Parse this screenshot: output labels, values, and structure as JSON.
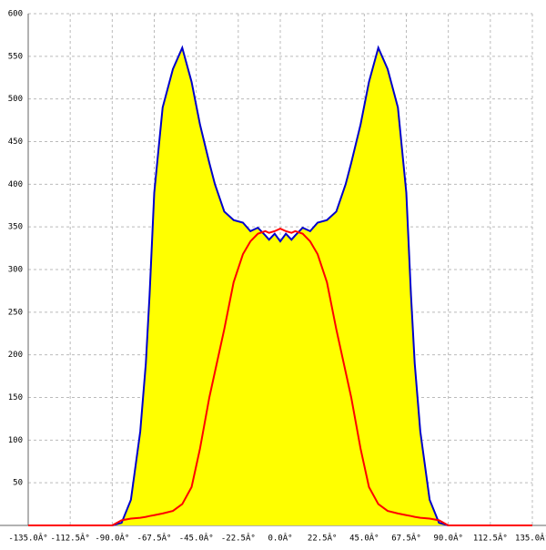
{
  "chart_data": {
    "type": "area-line",
    "grid": true,
    "xlim": [
      -135,
      135
    ],
    "ylim": [
      0,
      600
    ],
    "xticks": [
      {
        "value": -135,
        "label": "-135.0Â°"
      },
      {
        "value": -112.5,
        "label": "-112.5Â°"
      },
      {
        "value": -90,
        "label": "-90.0Â°"
      },
      {
        "value": -67.5,
        "label": "-67.5Â°"
      },
      {
        "value": -45,
        "label": "-45.0Â°"
      },
      {
        "value": -22.5,
        "label": "-22.5Â°"
      },
      {
        "value": 0,
        "label": "0.0Â°"
      },
      {
        "value": 22.5,
        "label": "22.5Â°"
      },
      {
        "value": 45,
        "label": "45.0Â°"
      },
      {
        "value": 67.5,
        "label": "67.5Â°"
      },
      {
        "value": 90,
        "label": "90.0Â°"
      },
      {
        "value": 112.5,
        "label": "112.5Â°"
      },
      {
        "value": 135,
        "label": "135.0Â°"
      }
    ],
    "yticks": [
      50,
      100,
      150,
      200,
      250,
      300,
      350,
      400,
      450,
      500,
      550,
      600
    ],
    "x": [
      -135,
      -90,
      -85,
      -80,
      -75,
      -72,
      -70,
      -67.5,
      -63,
      -57.5,
      -52.5,
      -47.5,
      -43,
      -38,
      -35,
      -30,
      -25,
      -20,
      -16,
      -12,
      -8,
      -6,
      -3,
      0,
      3,
      6,
      8,
      12,
      16,
      20,
      25,
      30,
      35,
      38,
      43,
      47.5,
      52.5,
      57.5,
      63,
      67.5,
      70,
      72,
      75,
      80,
      85,
      90,
      135
    ],
    "series": [
      {
        "kind": "area",
        "color": "#0000cc",
        "fill": "#ffff00",
        "values": [
          null,
          0,
          3,
          30,
          110,
          190,
          270,
          390,
          490,
          535,
          560,
          520,
          470,
          425,
          400,
          368,
          358,
          355,
          345,
          349,
          340,
          335,
          342,
          333,
          342,
          335,
          340,
          349,
          345,
          355,
          358,
          368,
          400,
          425,
          470,
          520,
          560,
          535,
          490,
          390,
          270,
          190,
          110,
          30,
          3,
          0,
          null
        ]
      },
      {
        "kind": "line",
        "color": "#ff0000",
        "values": [
          0,
          0,
          6,
          8,
          9,
          10,
          11,
          12,
          14,
          17,
          25,
          45,
          90,
          150,
          180,
          230,
          285,
          318,
          333,
          342,
          345,
          343,
          345,
          348,
          345,
          343,
          345,
          342,
          333,
          318,
          285,
          230,
          180,
          150,
          90,
          45,
          25,
          17,
          14,
          12,
          11,
          10,
          9,
          8,
          6,
          0,
          0
        ]
      }
    ]
  }
}
